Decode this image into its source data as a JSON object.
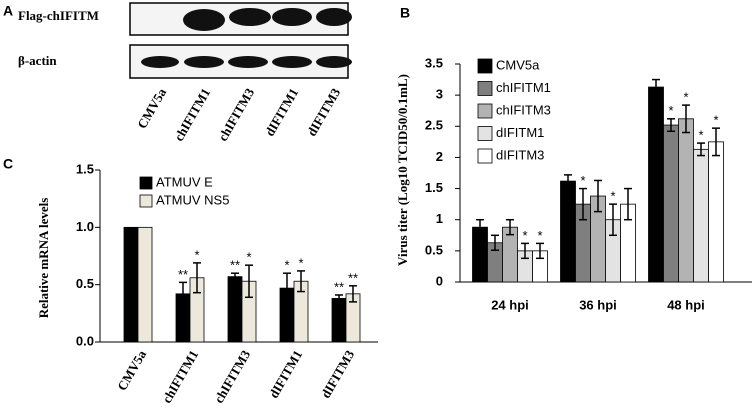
{
  "panel_a": {
    "panel_label": "A",
    "rows": [
      "Flag-chIFITM",
      "β-actin"
    ],
    "lanes": [
      "CMV5a",
      "chIFITM1",
      "chIFITM3",
      "dIFITM1",
      "dIFITM3"
    ]
  },
  "chart_data": [
    {
      "type": "bar",
      "panel_label": "B",
      "y_label": "Virus titer (Log10 TCID50/0.1mL)",
      "categories": [
        "24 hpi",
        "36 hpi",
        "48 hpi"
      ],
      "series": [
        {
          "name": "CMV5a",
          "color": "#000000",
          "values": [
            0.88,
            1.62,
            3.13
          ],
          "errors": [
            0.12,
            0.1,
            0.12
          ],
          "significance": [
            null,
            null,
            null
          ]
        },
        {
          "name": "chIFITM1",
          "color": "#7f7f7f",
          "values": [
            0.63,
            1.25,
            2.52
          ],
          "errors": [
            0.12,
            0.25,
            0.1
          ],
          "significance": [
            null,
            "*",
            "*"
          ]
        },
        {
          "name": "chIFITM3",
          "color": "#b3b3b3",
          "values": [
            0.88,
            1.38,
            2.62
          ],
          "errors": [
            0.12,
            0.25,
            0.22
          ],
          "significance": [
            null,
            null,
            "*"
          ]
        },
        {
          "name": "dIFITM1",
          "color": "#e3e3e3",
          "values": [
            0.5,
            1.0,
            2.13
          ],
          "errors": [
            0.12,
            0.25,
            0.1
          ],
          "significance": [
            "*",
            "*",
            "*"
          ]
        },
        {
          "name": "dIFITM3",
          "color": "#ffffff",
          "values": [
            0.5,
            1.25,
            2.25
          ],
          "errors": [
            0.12,
            0.25,
            0.22
          ],
          "significance": [
            "*",
            null,
            "*"
          ]
        }
      ],
      "ylim": [
        0,
        3.5
      ],
      "yticks": [
        0,
        0.5,
        1,
        1.5,
        2,
        2.5,
        3,
        3.5
      ]
    },
    {
      "type": "bar",
      "panel_label": "C",
      "y_label": "Relative mRNA levels",
      "categories": [
        "CMV5a",
        "chIFITM1",
        "chIFITM3",
        "dIFITM1",
        "dIFITM3"
      ],
      "series": [
        {
          "name": "ATMUV E",
          "color": "#000000",
          "values": [
            1.0,
            0.42,
            0.57,
            0.47,
            0.38
          ],
          "errors": [
            0,
            0.1,
            0.03,
            0.13,
            0.03
          ],
          "significance": [
            null,
            "**",
            "**",
            "*",
            "**"
          ]
        },
        {
          "name": "ATMUV NS5",
          "color": "#ece9dc",
          "values": [
            1.0,
            0.56,
            0.53,
            0.53,
            0.42
          ],
          "errors": [
            0,
            0.13,
            0.14,
            0.09,
            0.07
          ],
          "significance": [
            null,
            "*",
            "*",
            "*",
            "**"
          ]
        }
      ],
      "ylim": [
        0,
        1.5
      ],
      "yticks": [
        {
          "value": 0,
          "label": "0.0"
        },
        {
          "value": 0.5,
          "label": "0.5"
        },
        {
          "value": 1,
          "label": "1.0"
        },
        {
          "value": 1.5,
          "label": "1.5"
        }
      ]
    }
  ]
}
